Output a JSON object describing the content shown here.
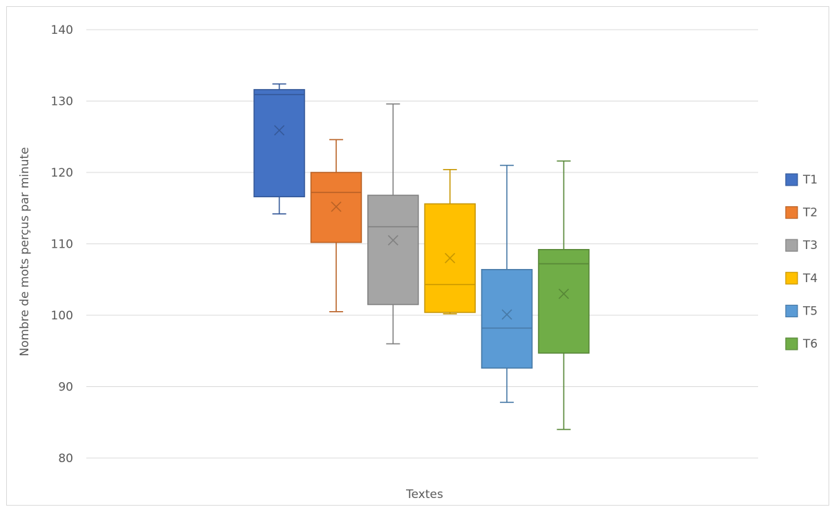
{
  "chart_data": {
    "type": "box",
    "title": "",
    "xlabel": "Textes",
    "ylabel": "Nombre de mots perçus par minute",
    "ylim": [
      80,
      140
    ],
    "yticks": [
      80,
      90,
      100,
      110,
      120,
      130,
      140
    ],
    "grid": true,
    "legend_position": "right",
    "series": [
      {
        "name": "T1",
        "color": "#4472C4",
        "min": 114.2,
        "q1": 116.6,
        "median": 130.9,
        "q3": 131.6,
        "max": 132.4,
        "mean": 125.9
      },
      {
        "name": "T2",
        "color": "#ED7D31",
        "min": 100.5,
        "q1": 110.2,
        "median": 117.2,
        "q3": 120.0,
        "max": 124.6,
        "mean": 115.2
      },
      {
        "name": "T3",
        "color": "#A5A5A5",
        "min": 96.0,
        "q1": 101.5,
        "median": 112.4,
        "q3": 116.8,
        "max": 129.6,
        "mean": 110.5
      },
      {
        "name": "T4",
        "color": "#FFC000",
        "min": 100.2,
        "q1": 100.4,
        "median": 104.3,
        "q3": 115.6,
        "max": 120.4,
        "mean": 108.0
      },
      {
        "name": "T5",
        "color": "#5B9BD5",
        "min": 87.8,
        "q1": 92.6,
        "median": 98.2,
        "q3": 106.4,
        "max": 121.0,
        "mean": 100.1
      },
      {
        "name": "T6",
        "color": "#70AD47",
        "min": 84.0,
        "q1": 94.7,
        "median": 107.2,
        "q3": 109.2,
        "max": 121.6,
        "mean": 103.0
      }
    ]
  }
}
